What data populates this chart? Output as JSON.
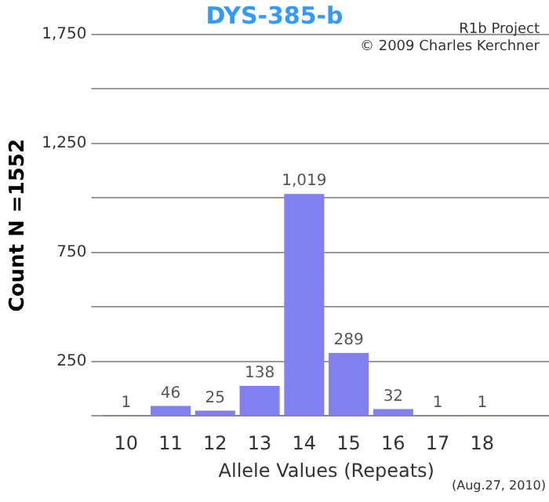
{
  "chart_data": {
    "type": "bar",
    "title": "DYS-385-b",
    "xlabel": "Allele Values (Repeats)",
    "ylabel": "Count N =1552",
    "categories": [
      "10",
      "11",
      "12",
      "13",
      "14",
      "15",
      "16",
      "17",
      "18",
      null
    ],
    "values": [
      1,
      46,
      25,
      138,
      1019,
      289,
      32,
      1,
      1,
      null
    ],
    "value_labels": [
      "1",
      "46",
      "25",
      "138",
      "1,019",
      "289",
      "32",
      "1",
      "1",
      null
    ],
    "color": "#8080f0",
    "ylim": [
      0,
      1750
    ],
    "yticks": [
      {
        "value": 0,
        "label": null
      },
      250,
      {
        "value": 500,
        "label": null
      },
      750,
      {
        "value": 1000,
        "label": null
      },
      {
        "value": 1250,
        "label": "1,250"
      },
      {
        "value": 1500,
        "label": null
      },
      {
        "value": 1750,
        "label": "1,750"
      }
    ],
    "grid": "y",
    "annotations": [
      "R1b Project",
      "© 2009 Charles Kerchner",
      "(Aug.27, 2010)"
    ]
  }
}
